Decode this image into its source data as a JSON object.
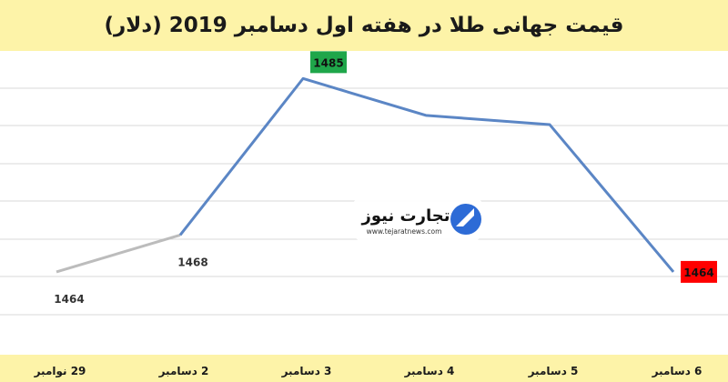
{
  "chart_data": {
    "type": "line",
    "title": "قیمت جهانی طلا در هفته اول دسامبر 2019 (دلار)",
    "categories": [
      "29 نوامبر",
      "2 دسامبر",
      "3 دسامبر",
      "4 دسامبر",
      "5 دسامبر",
      "6 دسامبر"
    ],
    "values": [
      1464,
      1468,
      1485,
      1481,
      1480,
      1464
    ],
    "data_labels": [
      "1464",
      "1468",
      "1485",
      "",
      "",
      "1464"
    ],
    "ylim": [
      1455,
      1488
    ],
    "grid": true,
    "colors": {
      "rise_line": "#5b86c5",
      "prior_line": "#bcbcbc",
      "max_label_bg": "#1fa64a",
      "min_label_bg": "#ff0000",
      "band": "#fdf3a8",
      "grid": "#d9d9d9"
    }
  },
  "watermark": {
    "brand": "تجارت نیوز",
    "url": "www.tejaratnews.com"
  }
}
